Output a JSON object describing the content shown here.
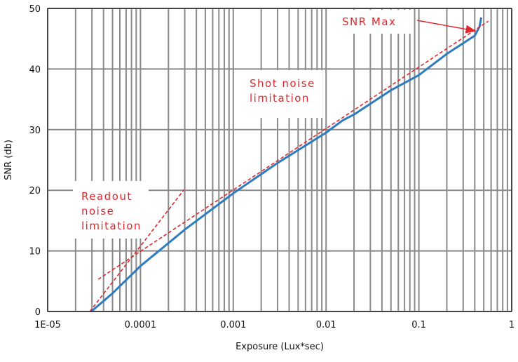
{
  "chart_data": {
    "type": "line",
    "x_label": "Exposure (Lux*sec)",
    "y_label": "SNR (db)",
    "xscale": "log",
    "xlim": [
      1e-05,
      1
    ],
    "ylim": [
      0,
      50
    ],
    "xticks": [
      {
        "value": 1e-05,
        "label": "1E-05"
      },
      0.0001,
      0.001,
      0.01,
      0.1,
      1
    ],
    "yticks": [
      0,
      10,
      20,
      30,
      40,
      50
    ],
    "grid": true,
    "minor_grid": true,
    "series": [
      {
        "color": "#2f7bbf",
        "dashed": false,
        "x": [
          2.95e-05,
          5e-05,
          0.0001,
          0.0003,
          0.001,
          0.003,
          0.01,
          0.015,
          0.02,
          0.05,
          0.1,
          0.2,
          0.4,
          0.45,
          0.47
        ],
        "values": [
          0,
          3,
          7.5,
          13.5,
          19.5,
          24.5,
          29.5,
          31.5,
          32.5,
          36.5,
          39,
          42.5,
          45.5,
          47,
          48.5
        ]
      },
      {
        "color": "#e0282e",
        "dashed": true,
        "x": [
          3.5e-05,
          0.56
        ],
        "values": [
          5.3,
          47.9
        ]
      },
      {
        "color": "#e0282e",
        "dashed": true,
        "x": [
          2.85e-05,
          0.000295
        ],
        "values": [
          0,
          20.1
        ]
      }
    ],
    "annotations": [
      {
        "lines": [
          "SNR Max"
        ]
      },
      {
        "lines": [
          "Shot noise",
          "limitation"
        ]
      },
      {
        "lines": [
          "Readout",
          "noise",
          "limitation"
        ]
      }
    ]
  }
}
